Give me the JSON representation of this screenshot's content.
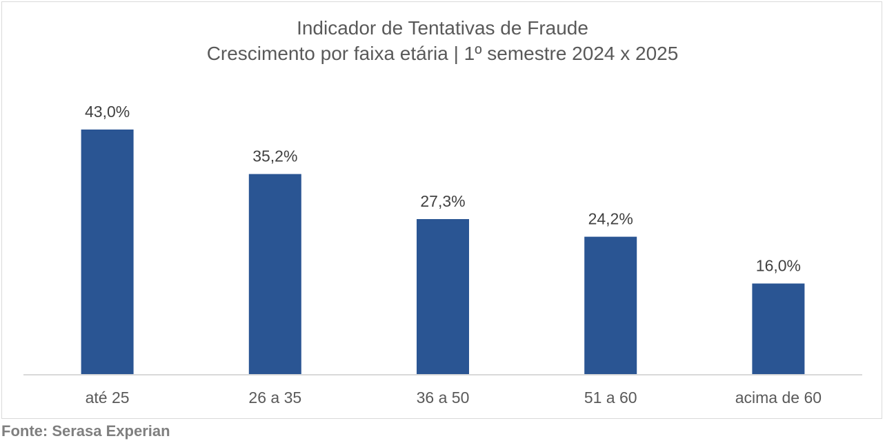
{
  "title_line1": "Indicador de Tentativas de Fraude",
  "title_line2": "Crescimento por faixa etária | 1º semestre 2024 x 2025",
  "source": "Fonte: Serasa Experian",
  "colors": {
    "bar": "#2a5593",
    "axis": "#d9d9d9",
    "label": "#404040",
    "tick": "#595959"
  },
  "chart_data": {
    "type": "bar",
    "title": "Indicador de Tentativas de Fraude",
    "subtitle": "Crescimento por faixa etária | 1º semestre 2024 x 2025",
    "categories": [
      "até 25",
      "26 a 35",
      "36 a 50",
      "51 a 60",
      "acima de 60"
    ],
    "values": [
      43.0,
      35.2,
      27.3,
      24.2,
      16.0
    ],
    "data_labels": [
      "43,0%",
      "35,2%",
      "27,3%",
      "24,2%",
      "16,0%"
    ],
    "unit": "%",
    "xlabel": "",
    "ylabel": "",
    "grid": false,
    "legend": "none",
    "ylim": [
      0,
      43.0
    ]
  }
}
